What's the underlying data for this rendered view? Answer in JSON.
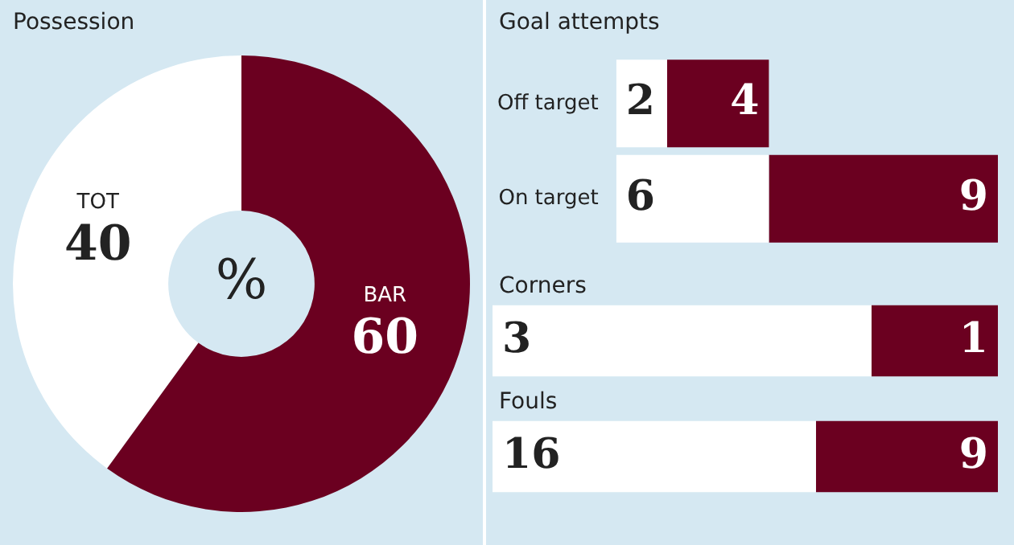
{
  "chart_data": [
    {
      "type": "donut",
      "title": "Possession",
      "categories": [
        "TOT",
        "BAR"
      ],
      "values": [
        40,
        60
      ],
      "colors": [
        "#ffffff",
        "#6b0020"
      ],
      "data_labels": true,
      "annotations": [
        "%"
      ],
      "legend": false
    },
    {
      "type": "bar",
      "orientation": "horizontal",
      "stacked": true,
      "title": "Goal attempts",
      "categories": [
        "Off target",
        "On target"
      ],
      "series": [
        {
          "color": "#ffffff",
          "values": [
            2,
            6
          ]
        },
        {
          "color": "#6b0020",
          "values": [
            4,
            9
          ]
        }
      ],
      "data_labels": true,
      "tick_labels": "y",
      "legend": false
    },
    {
      "type": "bar",
      "orientation": "horizontal",
      "stacked": true,
      "title": "Corners",
      "categories": [
        null
      ],
      "series": [
        {
          "color": "#ffffff",
          "values": [
            3
          ]
        },
        {
          "color": "#6b0020",
          "values": [
            1
          ]
        }
      ],
      "data_labels": true,
      "tick_labels": false,
      "legend": false
    },
    {
      "type": "bar",
      "orientation": "horizontal",
      "stacked": true,
      "title": "Fouls",
      "categories": [
        null
      ],
      "series": [
        {
          "color": "#ffffff",
          "values": [
            16
          ]
        },
        {
          "color": "#6b0020",
          "values": [
            9
          ]
        }
      ],
      "data_labels": true,
      "tick_labels": false,
      "legend": false
    }
  ]
}
